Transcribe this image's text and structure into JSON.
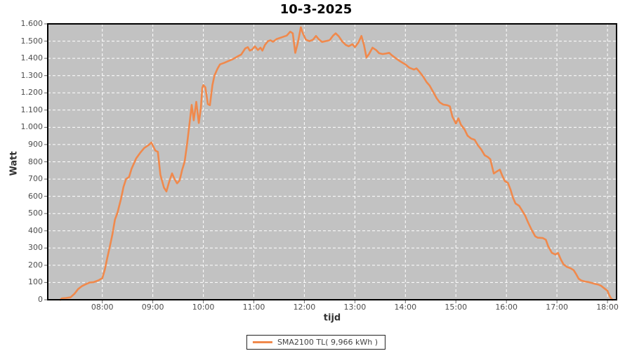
{
  "header": {
    "title": "10-3-2025"
  },
  "axes": {
    "y_label": "Watt",
    "x_label": "tijd"
  },
  "legend": {
    "label": "SMA2100 TL( 9,966 kWh )",
    "swatch_color": "#f0894c"
  },
  "colors": {
    "plot_background": "#c2c2c2",
    "grid": "#ffffff",
    "line": "#f0894c",
    "border": "#000000",
    "tick_text": "#4d4d4d"
  },
  "chart_data": {
    "type": "line",
    "title": "10-3-2025",
    "xlabel": "tijd",
    "ylabel": "Watt",
    "x_range": [
      6.92,
      18.18
    ],
    "y_range": [
      0,
      1600
    ],
    "grid": "white dashed, on",
    "legend_position": "bottom-center",
    "x_ticks": [
      {
        "value": 8,
        "label": "08:00"
      },
      {
        "value": 9,
        "label": "09:00"
      },
      {
        "value": 10,
        "label": "10:00"
      },
      {
        "value": 11,
        "label": "11:00"
      },
      {
        "value": 12,
        "label": "12:00"
      },
      {
        "value": 13,
        "label": "13:00"
      },
      {
        "value": 14,
        "label": "14:00"
      },
      {
        "value": 15,
        "label": "15:00"
      },
      {
        "value": 16,
        "label": "16:00"
      },
      {
        "value": 17,
        "label": "17:00"
      },
      {
        "value": 18,
        "label": "18:00"
      }
    ],
    "y_ticks": [
      {
        "value": 0,
        "label": "0"
      },
      {
        "value": 100,
        "label": "100"
      },
      {
        "value": 200,
        "label": "200"
      },
      {
        "value": 300,
        "label": "300"
      },
      {
        "value": 400,
        "label": "400"
      },
      {
        "value": 500,
        "label": "500"
      },
      {
        "value": 600,
        "label": "600"
      },
      {
        "value": 700,
        "label": "700"
      },
      {
        "value": 800,
        "label": "800"
      },
      {
        "value": 900,
        "label": "900"
      },
      {
        "value": 1000,
        "label": "1.000"
      },
      {
        "value": 1100,
        "label": "1.100"
      },
      {
        "value": 1200,
        "label": "1.200"
      },
      {
        "value": 1300,
        "label": "1.300"
      },
      {
        "value": 1400,
        "label": "1.400"
      },
      {
        "value": 1500,
        "label": "1.500"
      },
      {
        "value": 1600,
        "label": "1.600"
      }
    ],
    "series": [
      {
        "name": "SMA2100 TL( 9,966 kWh )",
        "color": "#f0894c",
        "points": [
          [
            7.17,
            0
          ],
          [
            7.2,
            8
          ],
          [
            7.28,
            10
          ],
          [
            7.37,
            14
          ],
          [
            7.45,
            35
          ],
          [
            7.52,
            62
          ],
          [
            7.6,
            80
          ],
          [
            7.67,
            90
          ],
          [
            7.75,
            100
          ],
          [
            7.83,
            102
          ],
          [
            7.92,
            112
          ],
          [
            8.0,
            125
          ],
          [
            8.05,
            175
          ],
          [
            8.1,
            245
          ],
          [
            8.15,
            310
          ],
          [
            8.2,
            380
          ],
          [
            8.25,
            465
          ],
          [
            8.3,
            505
          ],
          [
            8.37,
            585
          ],
          [
            8.42,
            655
          ],
          [
            8.47,
            700
          ],
          [
            8.53,
            712
          ],
          [
            8.58,
            760
          ],
          [
            8.67,
            820
          ],
          [
            8.75,
            852
          ],
          [
            8.83,
            880
          ],
          [
            8.92,
            898
          ],
          [
            8.97,
            912
          ],
          [
            9.0,
            895
          ],
          [
            9.05,
            865
          ],
          [
            9.1,
            858
          ],
          [
            9.15,
            725
          ],
          [
            9.22,
            650
          ],
          [
            9.27,
            628
          ],
          [
            9.32,
            680
          ],
          [
            9.38,
            733
          ],
          [
            9.43,
            700
          ],
          [
            9.48,
            675
          ],
          [
            9.53,
            692
          ],
          [
            9.58,
            752
          ],
          [
            9.63,
            800
          ],
          [
            9.68,
            905
          ],
          [
            9.72,
            1005
          ],
          [
            9.77,
            1130
          ],
          [
            9.81,
            1040
          ],
          [
            9.86,
            1148
          ],
          [
            9.91,
            1025
          ],
          [
            9.95,
            1110
          ],
          [
            9.98,
            1230
          ],
          [
            10.0,
            1245
          ],
          [
            10.04,
            1232
          ],
          [
            10.09,
            1135
          ],
          [
            10.13,
            1128
          ],
          [
            10.18,
            1245
          ],
          [
            10.22,
            1300
          ],
          [
            10.28,
            1340
          ],
          [
            10.33,
            1365
          ],
          [
            10.42,
            1375
          ],
          [
            10.5,
            1385
          ],
          [
            10.58,
            1395
          ],
          [
            10.67,
            1410
          ],
          [
            10.75,
            1422
          ],
          [
            10.83,
            1458
          ],
          [
            10.88,
            1465
          ],
          [
            10.92,
            1445
          ],
          [
            10.97,
            1452
          ],
          [
            11.02,
            1470
          ],
          [
            11.08,
            1448
          ],
          [
            11.13,
            1462
          ],
          [
            11.17,
            1445
          ],
          [
            11.22,
            1478
          ],
          [
            11.28,
            1500
          ],
          [
            11.33,
            1505
          ],
          [
            11.38,
            1496
          ],
          [
            11.45,
            1512
          ],
          [
            11.55,
            1522
          ],
          [
            11.65,
            1532
          ],
          [
            11.72,
            1555
          ],
          [
            11.77,
            1545
          ],
          [
            11.82,
            1432
          ],
          [
            11.87,
            1490
          ],
          [
            11.93,
            1580
          ],
          [
            11.97,
            1545
          ],
          [
            12.03,
            1508
          ],
          [
            12.1,
            1500
          ],
          [
            12.17,
            1508
          ],
          [
            12.23,
            1530
          ],
          [
            12.28,
            1512
          ],
          [
            12.35,
            1495
          ],
          [
            12.42,
            1500
          ],
          [
            12.5,
            1505
          ],
          [
            12.57,
            1532
          ],
          [
            12.62,
            1545
          ],
          [
            12.68,
            1528
          ],
          [
            12.75,
            1498
          ],
          [
            12.82,
            1478
          ],
          [
            12.88,
            1470
          ],
          [
            12.95,
            1482
          ],
          [
            13.0,
            1465
          ],
          [
            13.07,
            1492
          ],
          [
            13.13,
            1530
          ],
          [
            13.18,
            1478
          ],
          [
            13.23,
            1405
          ],
          [
            13.28,
            1425
          ],
          [
            13.35,
            1462
          ],
          [
            13.42,
            1448
          ],
          [
            13.48,
            1430
          ],
          [
            13.55,
            1425
          ],
          [
            13.62,
            1428
          ],
          [
            13.68,
            1432
          ],
          [
            13.73,
            1418
          ],
          [
            13.82,
            1398
          ],
          [
            13.9,
            1382
          ],
          [
            14.0,
            1365
          ],
          [
            14.08,
            1345
          ],
          [
            14.17,
            1335
          ],
          [
            14.22,
            1342
          ],
          [
            14.28,
            1322
          ],
          [
            14.35,
            1295
          ],
          [
            14.42,
            1262
          ],
          [
            14.48,
            1242
          ],
          [
            14.55,
            1205
          ],
          [
            14.62,
            1168
          ],
          [
            14.68,
            1145
          ],
          [
            14.75,
            1132
          ],
          [
            14.83,
            1128
          ],
          [
            14.88,
            1122
          ],
          [
            14.93,
            1062
          ],
          [
            15.0,
            1022
          ],
          [
            15.05,
            1052
          ],
          [
            15.1,
            1015
          ],
          [
            15.17,
            988
          ],
          [
            15.23,
            952
          ],
          [
            15.3,
            935
          ],
          [
            15.37,
            928
          ],
          [
            15.43,
            898
          ],
          [
            15.5,
            872
          ],
          [
            15.57,
            838
          ],
          [
            15.63,
            828
          ],
          [
            15.68,
            815
          ],
          [
            15.75,
            732
          ],
          [
            15.8,
            742
          ],
          [
            15.87,
            755
          ],
          [
            15.92,
            718
          ],
          [
            15.97,
            688
          ],
          [
            16.03,
            678
          ],
          [
            16.08,
            640
          ],
          [
            16.13,
            592
          ],
          [
            16.18,
            558
          ],
          [
            16.25,
            545
          ],
          [
            16.3,
            522
          ],
          [
            16.37,
            488
          ],
          [
            16.43,
            448
          ],
          [
            16.5,
            405
          ],
          [
            16.57,
            368
          ],
          [
            16.62,
            360
          ],
          [
            16.72,
            358
          ],
          [
            16.78,
            348
          ],
          [
            16.83,
            308
          ],
          [
            16.9,
            272
          ],
          [
            16.97,
            262
          ],
          [
            17.02,
            272
          ],
          [
            17.08,
            232
          ],
          [
            17.13,
            205
          ],
          [
            17.2,
            190
          ],
          [
            17.27,
            183
          ],
          [
            17.33,
            172
          ],
          [
            17.38,
            148
          ],
          [
            17.43,
            122
          ],
          [
            17.48,
            112
          ],
          [
            17.55,
            106
          ],
          [
            17.62,
            103
          ],
          [
            17.68,
            98
          ],
          [
            17.75,
            92
          ],
          [
            17.82,
            88
          ],
          [
            17.87,
            82
          ],
          [
            17.93,
            68
          ],
          [
            18.0,
            52
          ],
          [
            18.03,
            30
          ],
          [
            18.07,
            8
          ],
          [
            18.1,
            0
          ]
        ]
      }
    ]
  }
}
